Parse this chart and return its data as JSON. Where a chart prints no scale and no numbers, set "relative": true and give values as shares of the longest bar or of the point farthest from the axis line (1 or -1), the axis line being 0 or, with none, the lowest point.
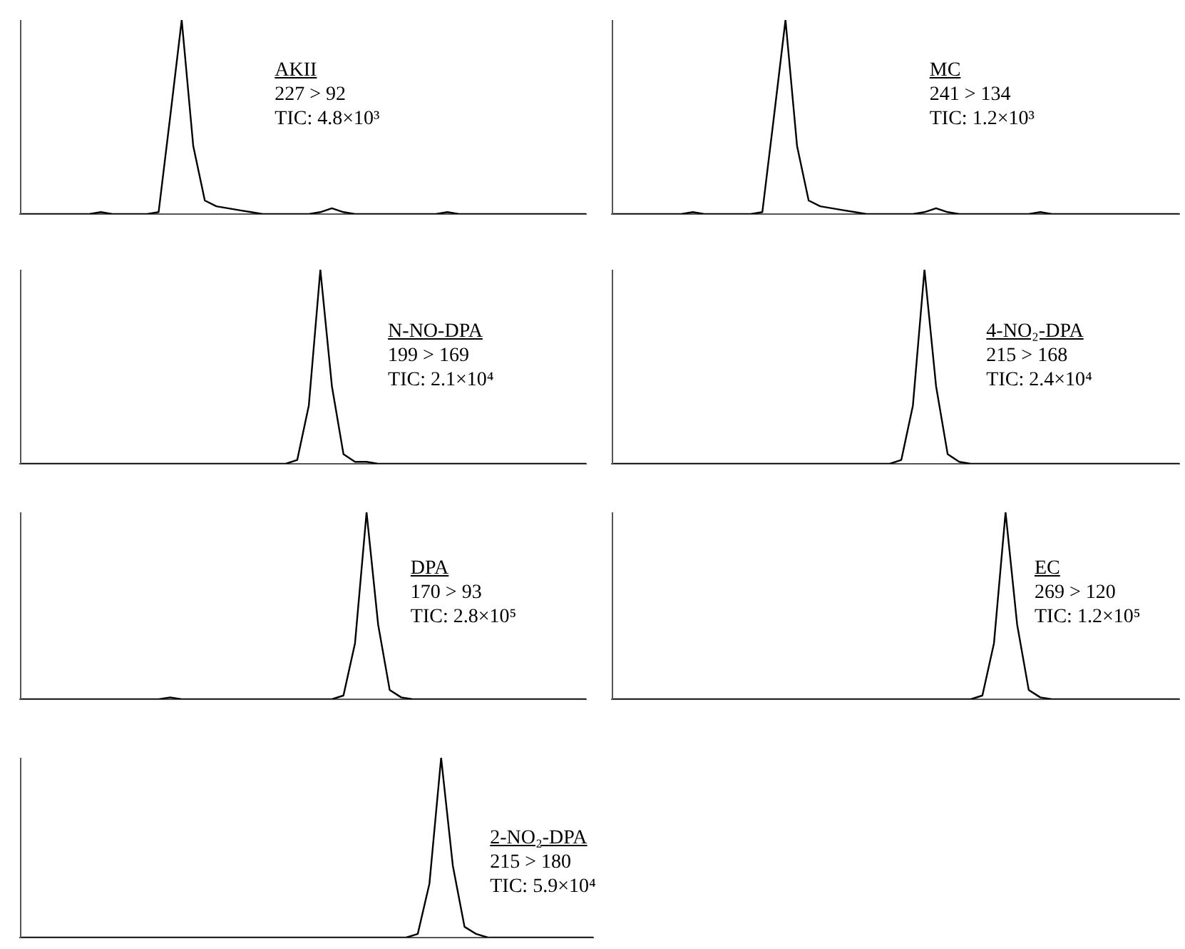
{
  "chart_data": [
    {
      "type": "line",
      "relative": true,
      "tick_labels": false,
      "color": "#000000",
      "categories": [
        null,
        null,
        null,
        null,
        null,
        null,
        null,
        null,
        null,
        null,
        null,
        null,
        null,
        null,
        null,
        null,
        null,
        null,
        null,
        null,
        null,
        null,
        null,
        null,
        null,
        null,
        null,
        null,
        null,
        null,
        null,
        null,
        null,
        null,
        null,
        null,
        null,
        null,
        null,
        null,
        null,
        null,
        null,
        null,
        null,
        null,
        null,
        null,
        null,
        null
      ],
      "values": [
        0,
        0,
        0,
        0,
        0,
        0,
        0,
        0.01,
        0,
        0,
        0,
        0,
        0.01,
        0.5,
        1,
        0.35,
        0.07,
        0.04,
        0.03,
        0.02,
        0.01,
        0,
        0,
        0,
        0,
        0,
        0.01,
        0.03,
        0.01,
        0,
        0,
        0,
        0,
        0,
        0,
        0,
        0,
        0.01,
        0,
        0,
        0,
        0,
        0,
        0,
        0,
        0,
        0,
        0,
        0,
        0
      ],
      "annotations": [
        "AKII",
        "227 > 92",
        "TIC: 4.8×10³"
      ]
    },
    {
      "type": "line",
      "relative": true,
      "tick_labels": false,
      "color": "#000000",
      "categories": [
        null,
        null,
        null,
        null,
        null,
        null,
        null,
        null,
        null,
        null,
        null,
        null,
        null,
        null,
        null,
        null,
        null,
        null,
        null,
        null,
        null,
        null,
        null,
        null,
        null,
        null,
        null,
        null,
        null,
        null,
        null,
        null,
        null,
        null,
        null,
        null,
        null,
        null,
        null,
        null,
        null,
        null,
        null,
        null,
        null,
        null,
        null,
        null,
        null,
        null
      ],
      "values": [
        0,
        0,
        0,
        0,
        0,
        0,
        0,
        0.01,
        0,
        0,
        0,
        0,
        0,
        0.01,
        0.5,
        1,
        0.35,
        0.07,
        0.04,
        0.03,
        0.02,
        0.01,
        0,
        0,
        0,
        0,
        0,
        0.01,
        0.03,
        0.01,
        0,
        0,
        0,
        0,
        0,
        0,
        0,
        0.01,
        0,
        0,
        0,
        0,
        0,
        0,
        0,
        0,
        0,
        0,
        0,
        0
      ],
      "annotations": [
        "MC",
        "241 > 134",
        "TIC: 1.2×10³"
      ]
    },
    {
      "type": "line",
      "relative": true,
      "tick_labels": false,
      "color": "#000000",
      "categories": [
        null,
        null,
        null,
        null,
        null,
        null,
        null,
        null,
        null,
        null,
        null,
        null,
        null,
        null,
        null,
        null,
        null,
        null,
        null,
        null,
        null,
        null,
        null,
        null,
        null,
        null,
        null,
        null,
        null,
        null,
        null,
        null,
        null,
        null,
        null,
        null,
        null,
        null,
        null,
        null,
        null,
        null,
        null,
        null,
        null,
        null,
        null,
        null,
        null,
        null
      ],
      "values": [
        0,
        0,
        0,
        0,
        0,
        0,
        0,
        0,
        0,
        0,
        0,
        0,
        0,
        0,
        0,
        0,
        0,
        0,
        0,
        0,
        0,
        0,
        0,
        0,
        0.02,
        0.3,
        1,
        0.4,
        0.05,
        0.01,
        0.01,
        0,
        0,
        0,
        0,
        0,
        0,
        0,
        0,
        0,
        0,
        0,
        0,
        0,
        0,
        0,
        0,
        0,
        0,
        0
      ],
      "annotations": [
        "N-NO-DPA",
        "199 > 169",
        "TIC: 2.1×10⁴"
      ]
    },
    {
      "type": "line",
      "relative": true,
      "tick_labels": false,
      "color": "#000000",
      "categories": [
        null,
        null,
        null,
        null,
        null,
        null,
        null,
        null,
        null,
        null,
        null,
        null,
        null,
        null,
        null,
        null,
        null,
        null,
        null,
        null,
        null,
        null,
        null,
        null,
        null,
        null,
        null,
        null,
        null,
        null,
        null,
        null,
        null,
        null,
        null,
        null,
        null,
        null,
        null,
        null,
        null,
        null,
        null,
        null,
        null,
        null,
        null,
        null,
        null,
        null
      ],
      "values": [
        0,
        0,
        0,
        0,
        0,
        0,
        0,
        0,
        0,
        0,
        0,
        0,
        0,
        0,
        0,
        0,
        0,
        0,
        0,
        0,
        0,
        0,
        0,
        0,
        0,
        0.02,
        0.3,
        1,
        0.4,
        0.05,
        0.01,
        0,
        0,
        0,
        0,
        0,
        0,
        0,
        0,
        0,
        0,
        0,
        0,
        0,
        0,
        0,
        0,
        0,
        0,
        0
      ],
      "annotations": [
        "4-NO₂-DPA",
        "215 > 168",
        "TIC: 2.4×10⁴"
      ]
    },
    {
      "type": "line",
      "relative": true,
      "tick_labels": false,
      "color": "#000000",
      "categories": [
        null,
        null,
        null,
        null,
        null,
        null,
        null,
        null,
        null,
        null,
        null,
        null,
        null,
        null,
        null,
        null,
        null,
        null,
        null,
        null,
        null,
        null,
        null,
        null,
        null,
        null,
        null,
        null,
        null,
        null,
        null,
        null,
        null,
        null,
        null,
        null,
        null,
        null,
        null,
        null,
        null,
        null,
        null,
        null,
        null,
        null,
        null,
        null,
        null,
        null
      ],
      "values": [
        0,
        0,
        0,
        0,
        0,
        0,
        0,
        0,
        0,
        0,
        0,
        0,
        0,
        0.01,
        0,
        0,
        0,
        0,
        0,
        0,
        0,
        0,
        0,
        0,
        0,
        0,
        0,
        0,
        0.02,
        0.3,
        1,
        0.4,
        0.05,
        0.01,
        0,
        0,
        0,
        0,
        0,
        0,
        0,
        0,
        0,
        0,
        0,
        0,
        0,
        0,
        0,
        0
      ],
      "annotations": [
        "DPA",
        "170 > 93",
        "TIC: 2.8×10⁵"
      ]
    },
    {
      "type": "line",
      "relative": true,
      "tick_labels": false,
      "color": "#000000",
      "categories": [
        null,
        null,
        null,
        null,
        null,
        null,
        null,
        null,
        null,
        null,
        null,
        null,
        null,
        null,
        null,
        null,
        null,
        null,
        null,
        null,
        null,
        null,
        null,
        null,
        null,
        null,
        null,
        null,
        null,
        null,
        null,
        null,
        null,
        null,
        null,
        null,
        null,
        null,
        null,
        null,
        null,
        null,
        null,
        null,
        null,
        null,
        null,
        null,
        null,
        null
      ],
      "values": [
        0,
        0,
        0,
        0,
        0,
        0,
        0,
        0,
        0,
        0,
        0,
        0,
        0,
        0,
        0,
        0,
        0,
        0,
        0,
        0,
        0,
        0,
        0,
        0,
        0,
        0,
        0,
        0,
        0,
        0,
        0,
        0,
        0.02,
        0.3,
        1,
        0.4,
        0.05,
        0.01,
        0,
        0,
        0,
        0,
        0,
        0,
        0,
        0,
        0,
        0,
        0,
        0
      ],
      "annotations": [
        "EC",
        "269 > 120",
        "TIC: 1.2×10⁵"
      ]
    },
    {
      "type": "line",
      "relative": true,
      "tick_labels": false,
      "color": "#000000",
      "categories": [
        null,
        null,
        null,
        null,
        null,
        null,
        null,
        null,
        null,
        null,
        null,
        null,
        null,
        null,
        null,
        null,
        null,
        null,
        null,
        null,
        null,
        null,
        null,
        null,
        null,
        null,
        null,
        null,
        null,
        null,
        null,
        null,
        null,
        null,
        null,
        null,
        null,
        null,
        null,
        null,
        null,
        null,
        null,
        null,
        null,
        null,
        null,
        null,
        null,
        null
      ],
      "values": [
        0,
        0,
        0,
        0,
        0,
        0,
        0,
        0,
        0,
        0,
        0,
        0,
        0,
        0,
        0,
        0,
        0,
        0,
        0,
        0,
        0,
        0,
        0,
        0,
        0,
        0,
        0,
        0,
        0,
        0,
        0,
        0,
        0,
        0,
        0.02,
        0.3,
        1,
        0.4,
        0.06,
        0.02,
        0,
        0,
        0,
        0,
        0,
        0,
        0,
        0,
        0,
        0
      ],
      "annotations": [
        "2-NO₂-DPA",
        "215 > 180",
        "TIC: 5.9×10⁴"
      ]
    }
  ]
}
